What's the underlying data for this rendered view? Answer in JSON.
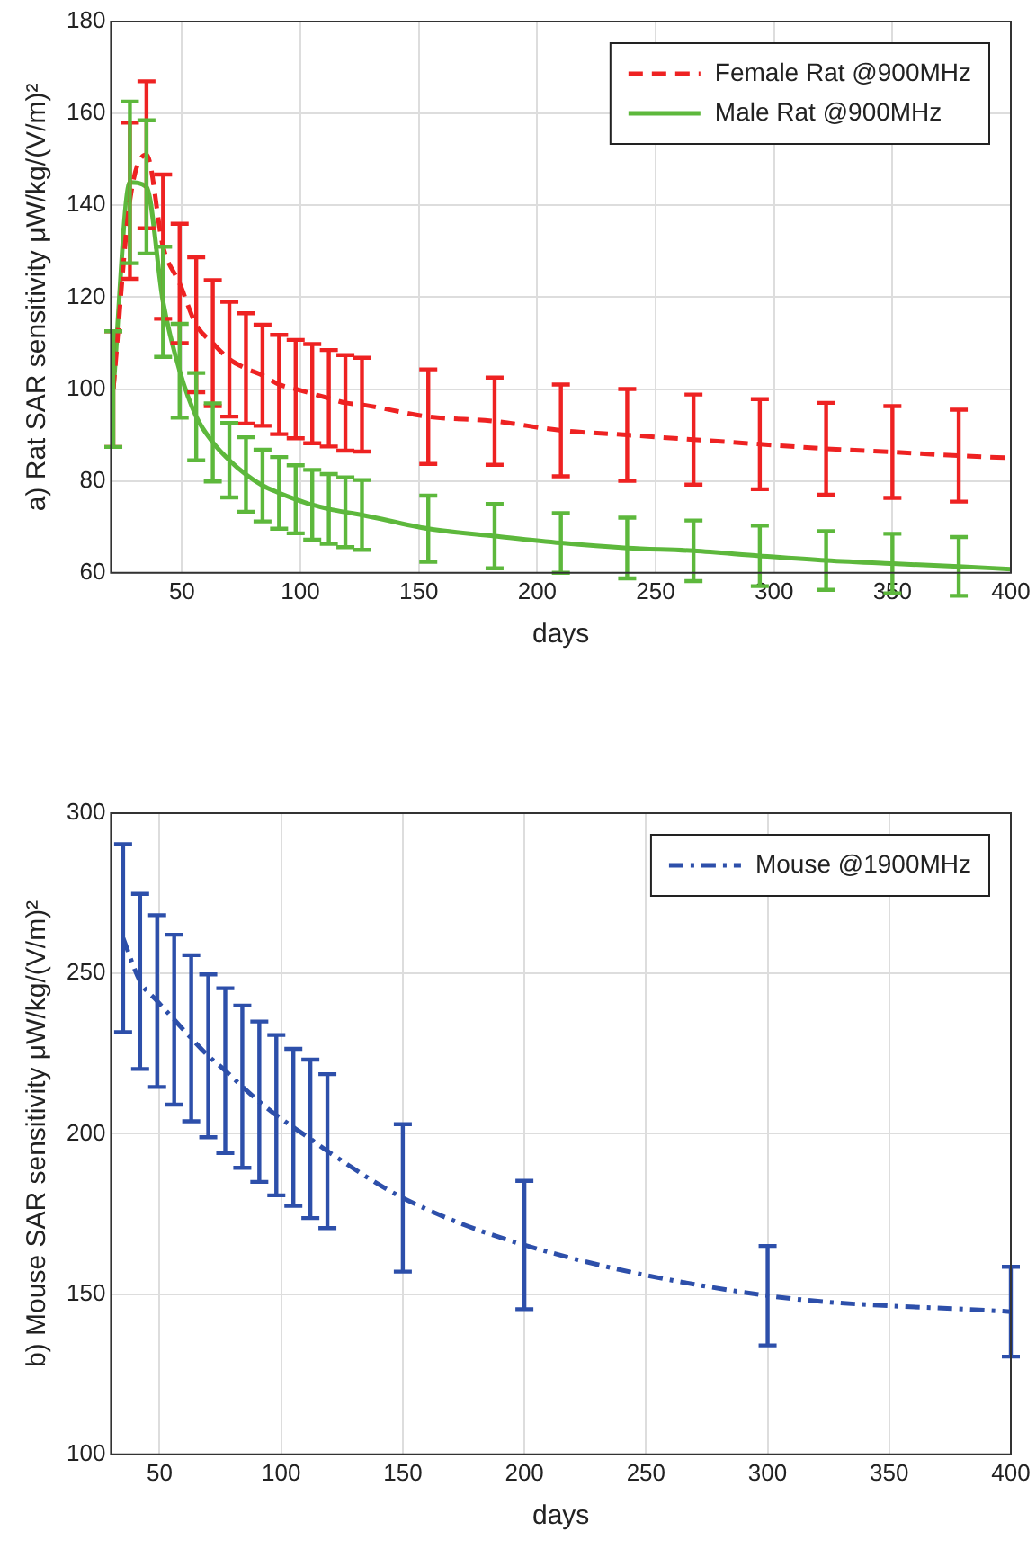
{
  "chart_data": [
    {
      "type": "line",
      "xlabel": "days",
      "ylabel": "a) Rat SAR sensitivity μW/kg/(V/m)²",
      "x": [
        21,
        28,
        35,
        42,
        49,
        56,
        63,
        70,
        77,
        84,
        91,
        98,
        105,
        112,
        119,
        126,
        154,
        182,
        210,
        238,
        266,
        294,
        322,
        350,
        378,
        400
      ],
      "xlim": [
        20,
        400
      ],
      "xticks": [
        50,
        100,
        150,
        200,
        250,
        300,
        350,
        400
      ],
      "ylim": [
        60,
        180
      ],
      "yticks": [
        60,
        80,
        100,
        120,
        140,
        160,
        180
      ],
      "grid": true,
      "legend": "top right",
      "marker": "none",
      "series": [
        {
          "name": "Female Rat @900MHz",
          "color": "#ee2222",
          "line_style": "dashed",
          "values": [
            100,
            141,
            151,
            131,
            123,
            114,
            110,
            106.5,
            104.5,
            103,
            101,
            100,
            99,
            98,
            97,
            96.6,
            94,
            93,
            91,
            90,
            89,
            88,
            87,
            86.3,
            85.5,
            85
          ],
          "errors": [
            12.6,
            17,
            16,
            15.7,
            13,
            14.7,
            13.7,
            12.5,
            12,
            11,
            10.8,
            10.7,
            10.8,
            10.5,
            10.4,
            10.2,
            10.3,
            9.5,
            10,
            10,
            9.8,
            9.8,
            10,
            10,
            10,
            null
          ]
        },
        {
          "name": "Male Rat @900MHz",
          "color": "#5db83c",
          "line_style": "solid",
          "values": [
            100,
            145,
            144,
            119,
            104,
            94,
            88.4,
            84.5,
            81.4,
            79,
            77.4,
            76,
            74.8,
            73.9,
            73.2,
            72.6,
            69.6,
            68,
            66.5,
            65.4,
            64.8,
            63.7,
            62.7,
            62,
            61.4,
            60.8
          ],
          "errors": [
            12.6,
            17.6,
            14.5,
            12,
            10.2,
            9.5,
            8.5,
            8.1,
            8.1,
            7.8,
            7.8,
            7.4,
            7.6,
            7.6,
            7.6,
            7.6,
            7.2,
            7,
            6.5,
            6.6,
            6.6,
            6.6,
            6.4,
            6.5,
            6.4,
            null
          ]
        }
      ]
    },
    {
      "type": "line",
      "xlabel": "days",
      "ylabel": "b) Mouse SAR sensitivity μW/kg/(V/m)²",
      "x": [
        35,
        42,
        49,
        56,
        63,
        70,
        77,
        84,
        91,
        98,
        105,
        112,
        119,
        150,
        200,
        300,
        400
      ],
      "xlim": [
        30,
        400
      ],
      "xticks": [
        50,
        100,
        150,
        200,
        250,
        300,
        350,
        400
      ],
      "ylim": [
        100,
        300
      ],
      "yticks": [
        100,
        150,
        200,
        250,
        300
      ],
      "grid": true,
      "legend": "top right",
      "marker": "none",
      "series": [
        {
          "name": "Mouse @1900MHz",
          "color": "#2d4faa",
          "line_style": "dashdot",
          "values": [
            261,
            247.5,
            241.4,
            235.6,
            229.8,
            224.3,
            219.7,
            214.7,
            210,
            205.8,
            202,
            198.4,
            194.6,
            180,
            165.3,
            149.5,
            144.5
          ],
          "errors": [
            29.3,
            27.3,
            26.8,
            26.5,
            25.9,
            25.4,
            25.7,
            25.3,
            25,
            25,
            24.5,
            24.7,
            24,
            23,
            20,
            15.5,
            14
          ]
        }
      ]
    }
  ]
}
